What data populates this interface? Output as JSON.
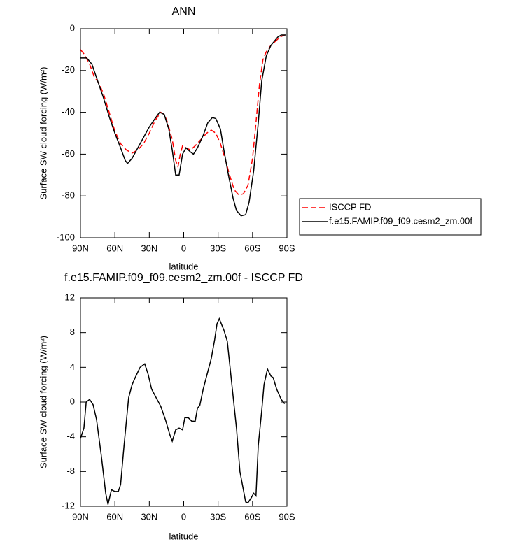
{
  "chart_data": [
    {
      "type": "line",
      "title": "ANN",
      "xlabel": "latitude",
      "ylabel": "Surface SW cloud forcing (W/m²)",
      "xlim": [
        90,
        -90
      ],
      "xticks": [
        {
          "value": 90,
          "label": "90N"
        },
        {
          "value": 60,
          "label": "60N"
        },
        {
          "value": 30,
          "label": "30N"
        },
        {
          "value": 0,
          "label": "0"
        },
        {
          "value": -30,
          "label": "30S"
        },
        {
          "value": -60,
          "label": "60S"
        },
        {
          "value": -90,
          "label": "90S"
        }
      ],
      "ylim": [
        -100,
        0
      ],
      "yticks": [
        0,
        -20,
        -40,
        -60,
        -80,
        -100
      ],
      "legend_position": "right",
      "series": [
        {
          "name": "ISCCP FD",
          "color": "#ff0000",
          "line_style": "dashed",
          "x": [
            90,
            87,
            82,
            78,
            74,
            70,
            65,
            60,
            55,
            50,
            45,
            40,
            35,
            30,
            25,
            20,
            17,
            14,
            10,
            7,
            5,
            3,
            1,
            -2,
            -6,
            -10,
            -15,
            -20,
            -24,
            -28,
            -32,
            -36,
            -40,
            -44,
            -48,
            -52,
            -56,
            -60,
            -63,
            -66,
            -69,
            -72,
            -76,
            -80,
            -84,
            -88
          ],
          "values": [
            -10,
            -12,
            -17,
            -23,
            -26,
            -31,
            -40,
            -49,
            -55,
            -58,
            -59.5,
            -58,
            -55,
            -50,
            -44,
            -40,
            -41,
            -45,
            -53,
            -63,
            -66,
            -60,
            -56,
            -57,
            -58,
            -56,
            -53,
            -50,
            -48.5,
            -50,
            -55,
            -62,
            -70,
            -77,
            -79.5,
            -79,
            -75,
            -62,
            -45,
            -27,
            -15,
            -11,
            -8,
            -6,
            -4,
            -3
          ]
        },
        {
          "name": "f.e15.FAMIP.f09_f09.cesm2_zm.00f",
          "color": "#000000",
          "line_style": "solid",
          "x": [
            90,
            84.5,
            80,
            75,
            70,
            65,
            60,
            55,
            51,
            49,
            45,
            40,
            35,
            30,
            25,
            21,
            17,
            13,
            10,
            7,
            4,
            1,
            -2,
            -6,
            -8.5,
            -12,
            -17,
            -21,
            -25,
            -28,
            -32,
            -35,
            -39,
            -43,
            -46,
            -50,
            -54,
            -57,
            -61,
            -65,
            -68,
            -72,
            -76,
            -79,
            -82,
            -85,
            -89
          ],
          "values": [
            -14,
            -14,
            -17,
            -25,
            -33,
            -42,
            -50,
            -57,
            -63,
            -64.5,
            -62,
            -57,
            -52,
            -47,
            -43,
            -40,
            -41,
            -48,
            -58,
            -70,
            -70,
            -60,
            -57,
            -59,
            -60,
            -57,
            -51,
            -45,
            -42.5,
            -43,
            -48,
            -58,
            -70,
            -81,
            -87,
            -89.5,
            -89,
            -83,
            -68,
            -45,
            -25,
            -13,
            -8,
            -6,
            -4,
            -3,
            -3
          ]
        }
      ]
    },
    {
      "type": "line",
      "title": "f.e15.FAMIP.f09_f09.cesm2_zm.00f - ISCCP FD",
      "xlabel": "latitude",
      "ylabel": "Surface SW cloud forcing (W/m²)",
      "xlim": [
        90,
        -90
      ],
      "xticks": [
        {
          "value": 90,
          "label": "90N"
        },
        {
          "value": 60,
          "label": "60N"
        },
        {
          "value": 30,
          "label": "30N"
        },
        {
          "value": 0,
          "label": "0"
        },
        {
          "value": -30,
          "label": "30S"
        },
        {
          "value": -60,
          "label": "60S"
        },
        {
          "value": -90,
          "label": "90S"
        }
      ],
      "ylim": [
        -12,
        12
      ],
      "yticks": [
        12,
        8,
        4,
        0,
        -4,
        -8,
        -12
      ],
      "series": [
        {
          "color": "#000000",
          "line_style": "solid",
          "x": [
            90,
            87,
            85,
            82,
            79,
            76,
            72,
            68,
            66,
            63,
            60,
            57,
            55,
            52,
            48,
            45,
            42,
            38,
            34,
            31,
            28,
            24,
            20,
            16,
            12,
            10,
            7,
            4,
            1,
            -1,
            -4,
            -7,
            -10,
            -12,
            -14,
            -17,
            -20,
            -24,
            -27,
            -29,
            -31,
            -35,
            -38,
            -42,
            -46,
            -49,
            -54,
            -56,
            -59,
            -61,
            -63,
            -65,
            -68,
            -70,
            -73,
            -76,
            -78,
            -81,
            -85,
            -88
          ],
          "values": [
            -4.2,
            -3,
            0,
            0.3,
            -0.3,
            -2,
            -6,
            -10.5,
            -11.8,
            -10.1,
            -10.3,
            -10.3,
            -9.5,
            -5,
            0.5,
            2,
            2.9,
            4,
            4.4,
            3.2,
            1.5,
            0.5,
            -0.5,
            -2,
            -3.8,
            -4.5,
            -3.2,
            -3,
            -3.2,
            -1.8,
            -1.8,
            -2.2,
            -2.2,
            -0.7,
            -0.4,
            1.5,
            3,
            5,
            7.2,
            9,
            9.6,
            8.3,
            7,
            2,
            -3,
            -8,
            -11.5,
            -11.6,
            -11,
            -10.5,
            -10.8,
            -5,
            -1,
            2,
            3.8,
            3,
            2.8,
            1.5,
            0.3,
            -0.2
          ]
        }
      ]
    }
  ]
}
